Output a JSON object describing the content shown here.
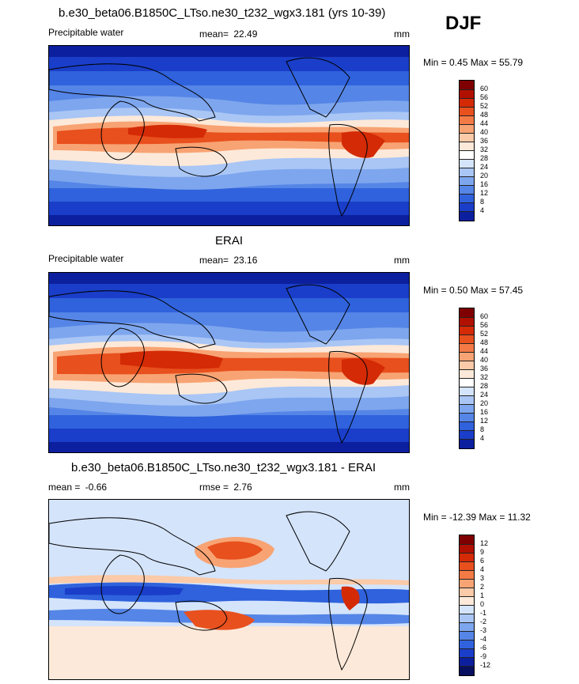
{
  "season": "DJF",
  "panels": [
    {
      "title": "b.e30_beta06.B1850C_LTso.ne30_t232_wgx3.181 (yrs 10-39)",
      "variable": "Precipitable water",
      "stat1_label": "mean=",
      "stat1_value": "22.49",
      "units": "mm",
      "range_text": "Min =  0.45 Max =  55.79",
      "colorbar": {
        "ticks": [
          "60",
          "56",
          "52",
          "48",
          "44",
          "40",
          "36",
          "32",
          "28",
          "24",
          "20",
          "16",
          "12",
          "8",
          "4"
        ],
        "colors": [
          "#7f0000",
          "#b01000",
          "#d42a06",
          "#e8501e",
          "#f47a45",
          "#f8a373",
          "#fbcaa8",
          "#fde9d9",
          "#ffffff",
          "#d4e4fb",
          "#a9c6f5",
          "#7ea6ee",
          "#5585e6",
          "#2f62dc",
          "#1a3ec9",
          "#0c1f9e"
        ]
      }
    },
    {
      "title": "ERAI",
      "variable": "Precipitable water",
      "stat1_label": "mean=",
      "stat1_value": "23.16",
      "units": "mm",
      "range_text": "Min =  0.50 Max =  57.45",
      "colorbar": {
        "ticks": [
          "60",
          "56",
          "52",
          "48",
          "44",
          "40",
          "36",
          "32",
          "28",
          "24",
          "20",
          "16",
          "12",
          "8",
          "4"
        ],
        "colors": [
          "#7f0000",
          "#b01000",
          "#d42a06",
          "#e8501e",
          "#f47a45",
          "#f8a373",
          "#fbcaa8",
          "#fde9d9",
          "#ffffff",
          "#d4e4fb",
          "#a9c6f5",
          "#7ea6ee",
          "#5585e6",
          "#2f62dc",
          "#1a3ec9",
          "#0c1f9e"
        ]
      }
    },
    {
      "title": "b.e30_beta06.B1850C_LTso.ne30_t232_wgx3.181 - ERAI",
      "stat1_label": "mean =",
      "stat1_value": "-0.66",
      "stat2_label": "rmse =",
      "stat2_value": "2.76",
      "units": "mm",
      "range_text": "Min = -12.39 Max =  11.32",
      "colorbar": {
        "ticks": [
          "12",
          "9",
          "6",
          "4",
          "3",
          "2",
          "1",
          "0",
          "-1",
          "-2",
          "-3",
          "-4",
          "-6",
          "-9",
          "-12"
        ],
        "colors": [
          "#7f0000",
          "#b01000",
          "#d42a06",
          "#e8501e",
          "#f47a45",
          "#f8a373",
          "#fbcaa8",
          "#fde9d9",
          "#d4e4fb",
          "#a9c6f5",
          "#7ea6ee",
          "#5585e6",
          "#2f62dc",
          "#1a3ec9",
          "#0c1f9e",
          "#06105e"
        ]
      }
    }
  ]
}
